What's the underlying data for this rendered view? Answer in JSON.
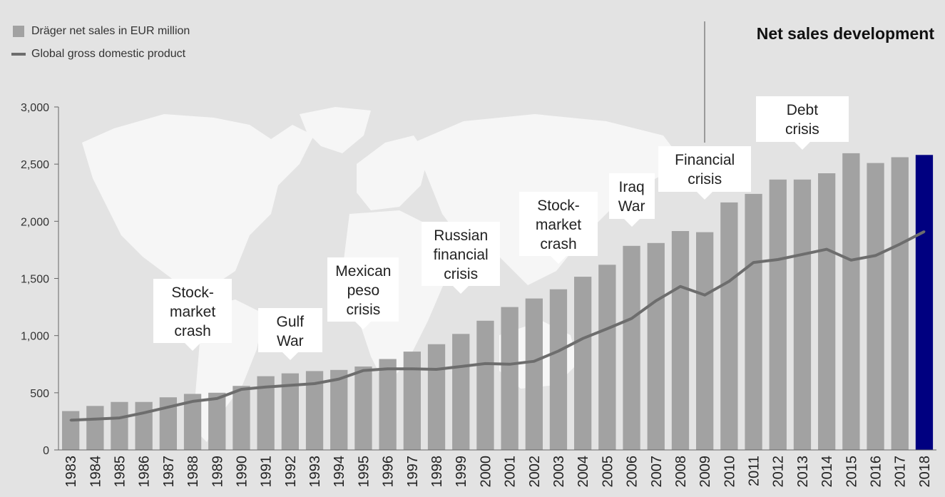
{
  "chart_data": {
    "type": "bar",
    "title": "Net sales development",
    "legend": [
      {
        "label": "Dräger net sales in EUR million",
        "kind": "bar"
      },
      {
        "label": "Global gross domestic product",
        "kind": "line"
      }
    ],
    "legend_position": "top-left",
    "categories": [
      "1983",
      "1984",
      "1985",
      "1986",
      "1987",
      "1988",
      "1989",
      "1990",
      "1991",
      "1992",
      "1993",
      "1994",
      "1995",
      "1996",
      "1997",
      "1998",
      "1999",
      "2000",
      "2001",
      "2002",
      "2003",
      "2004",
      "2005",
      "2006",
      "2007",
      "2008",
      "2009",
      "2010",
      "2011",
      "2012",
      "2013",
      "2014",
      "2015",
      "2016",
      "2017",
      "2018"
    ],
    "series": [
      {
        "name": "Dräger net sales in EUR million",
        "type": "bar",
        "values": [
          340,
          385,
          420,
          420,
          460,
          490,
          500,
          560,
          645,
          670,
          690,
          700,
          730,
          795,
          860,
          925,
          1015,
          1130,
          1250,
          1325,
          1405,
          1515,
          1620,
          1785,
          1810,
          1915,
          1905,
          2165,
          2240,
          2365,
          2365,
          2420,
          2595,
          2510,
          2560,
          2580
        ],
        "color": "#a2a2a2",
        "highlight": {
          "category": "2018",
          "color": "#000080"
        }
      },
      {
        "name": "Global gross domestic product",
        "type": "line",
        "values": [
          260,
          270,
          280,
          325,
          375,
          425,
          450,
          530,
          550,
          565,
          580,
          620,
          695,
          710,
          710,
          705,
          730,
          755,
          750,
          775,
          865,
          975,
          1060,
          1150,
          1305,
          1430,
          1355,
          1475,
          1640,
          1665,
          1710,
          1755,
          1660,
          1700,
          1800,
          1910
        ],
        "color": "#6d6d6d"
      }
    ],
    "y_ticks": [
      "0",
      "500",
      "1,000",
      "1,500",
      "2,000",
      "2,500",
      "3,000"
    ],
    "ylim": [
      0,
      3000
    ],
    "xlabel": "",
    "ylabel": "",
    "grid": false,
    "annotations": [
      {
        "lines": [
          "Stock-",
          "market",
          "crash"
        ],
        "category": "1988"
      },
      {
        "lines": [
          "Gulf",
          "War"
        ],
        "category": "1992"
      },
      {
        "lines": [
          "Mexican",
          "peso",
          "crisis"
        ],
        "category": "1995"
      },
      {
        "lines": [
          "Russian",
          "financial",
          "crisis"
        ],
        "category": "1999"
      },
      {
        "lines": [
          "Stock-",
          "market",
          "crash"
        ],
        "category": "2003"
      },
      {
        "lines": [
          "Iraq",
          "War"
        ],
        "category": "2006"
      },
      {
        "lines": [
          "Financial",
          "crisis"
        ],
        "category": "2009"
      },
      {
        "lines": [
          "Debt",
          "crisis"
        ],
        "category": "2013"
      }
    ]
  }
}
